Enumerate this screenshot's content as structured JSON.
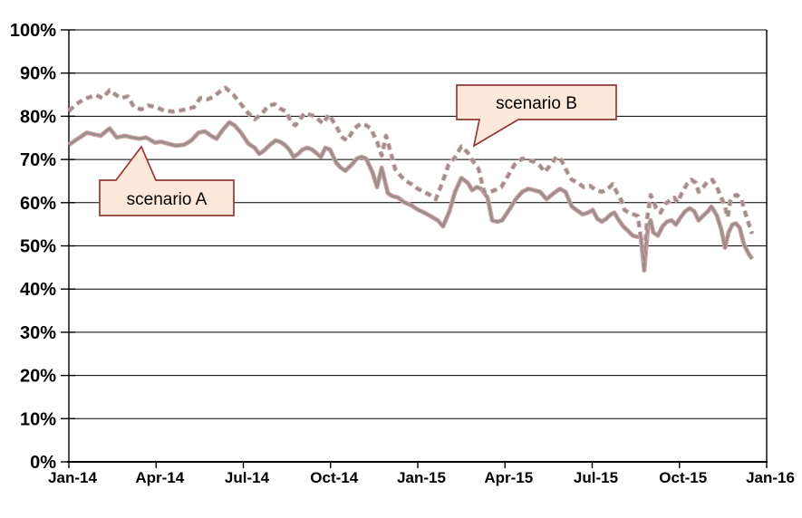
{
  "chart_data": {
    "type": "line",
    "title": "",
    "grid": "horizontal",
    "background": "#ffffff",
    "x_axis": {
      "range_months": [
        0,
        24
      ],
      "ticks": [
        {
          "label": "Jan-14",
          "month": 0
        },
        {
          "label": "Apr-14",
          "month": 3
        },
        {
          "label": "Jul-14",
          "month": 6
        },
        {
          "label": "Oct-14",
          "month": 9
        },
        {
          "label": "Jan-15",
          "month": 12
        },
        {
          "label": "Apr-15",
          "month": 15
        },
        {
          "label": "Jul-15",
          "month": 18
        },
        {
          "label": "Oct-15",
          "month": 21
        },
        {
          "label": "Jan-16",
          "month": 24
        }
      ]
    },
    "y_axis": {
      "range": [
        0,
        100
      ],
      "format": "percent",
      "ticks": [
        {
          "label": "0%",
          "value": 0
        },
        {
          "label": "10%",
          "value": 10
        },
        {
          "label": "20%",
          "value": 20
        },
        {
          "label": "30%",
          "value": 30
        },
        {
          "label": "40%",
          "value": 40
        },
        {
          "label": "50%",
          "value": 50
        },
        {
          "label": "60%",
          "value": 60
        },
        {
          "label": "70%",
          "value": 70
        },
        {
          "label": "80%",
          "value": 80
        },
        {
          "label": "90%",
          "value": 90
        },
        {
          "label": "100%",
          "value": 100
        }
      ]
    },
    "colors": {
      "line_core": "#95908e",
      "line_edge": "#d5a2a2",
      "grid": "#000000",
      "axis": "#000000"
    },
    "series": [
      {
        "name": "scenario A",
        "style": "solid",
        "points": [
          [
            0,
            73.4
          ],
          [
            0.31,
            74.8
          ],
          [
            0.62,
            76.2
          ],
          [
            0.87,
            75.8
          ],
          [
            1.09,
            75.5
          ],
          [
            1.4,
            77.2
          ],
          [
            1.65,
            75.1
          ],
          [
            1.93,
            75.5
          ],
          [
            2.18,
            75.1
          ],
          [
            2.43,
            74.8
          ],
          [
            2.65,
            75.1
          ],
          [
            2.96,
            73.9
          ],
          [
            3.18,
            74.1
          ],
          [
            3.43,
            73.6
          ],
          [
            3.68,
            73.2
          ],
          [
            3.96,
            73.4
          ],
          [
            4.21,
            74.4
          ],
          [
            4.46,
            76.2
          ],
          [
            4.68,
            76.5
          ],
          [
            4.89,
            75.5
          ],
          [
            5.08,
            74.8
          ],
          [
            5.3,
            76.9
          ],
          [
            5.52,
            78.6
          ],
          [
            5.7,
            77.9
          ],
          [
            5.92,
            76.2
          ],
          [
            6.17,
            73.7
          ],
          [
            6.39,
            72.7
          ],
          [
            6.55,
            71.3
          ],
          [
            6.7,
            72
          ],
          [
            6.92,
            73.4
          ],
          [
            7.11,
            74.4
          ],
          [
            7.26,
            74.1
          ],
          [
            7.42,
            73.4
          ],
          [
            7.58,
            72.3
          ],
          [
            7.73,
            70.6
          ],
          [
            7.89,
            71.3
          ],
          [
            8.04,
            72.3
          ],
          [
            8.2,
            72.7
          ],
          [
            8.36,
            72.3
          ],
          [
            8.67,
            70.6
          ],
          [
            8.82,
            72.7
          ],
          [
            8.98,
            72.3
          ],
          [
            9.2,
            69.2
          ],
          [
            9.35,
            68.1
          ],
          [
            9.51,
            67.4
          ],
          [
            9.73,
            68.8
          ],
          [
            9.91,
            70.2
          ],
          [
            10.07,
            70.6
          ],
          [
            10.22,
            70.2
          ],
          [
            10.44,
            67.1
          ],
          [
            10.6,
            63.6
          ],
          [
            10.76,
            68.1
          ],
          [
            10.97,
            62.2
          ],
          [
            11.13,
            61.5
          ],
          [
            11.32,
            61.2
          ],
          [
            11.53,
            60.1
          ],
          [
            11.78,
            59.4
          ],
          [
            12,
            58.4
          ],
          [
            12.22,
            57.7
          ],
          [
            12.41,
            57
          ],
          [
            12.69,
            55.9
          ],
          [
            12.87,
            54.5
          ],
          [
            13.09,
            58
          ],
          [
            13.28,
            62.5
          ],
          [
            13.5,
            65.7
          ],
          [
            13.72,
            64.6
          ],
          [
            13.87,
            62.9
          ],
          [
            14.03,
            63.6
          ],
          [
            14.18,
            63.2
          ],
          [
            14.4,
            61.2
          ],
          [
            14.56,
            55.9
          ],
          [
            14.74,
            55.6
          ],
          [
            14.9,
            55.9
          ],
          [
            15.18,
            58.7
          ],
          [
            15.37,
            60.8
          ],
          [
            15.59,
            62.5
          ],
          [
            15.8,
            63.2
          ],
          [
            15.99,
            62.9
          ],
          [
            16.21,
            62.5
          ],
          [
            16.43,
            60.8
          ],
          [
            16.68,
            62.2
          ],
          [
            16.89,
            63.2
          ],
          [
            17.08,
            62.5
          ],
          [
            17.3,
            59.1
          ],
          [
            17.52,
            58
          ],
          [
            17.67,
            57.3
          ],
          [
            17.86,
            57.7
          ],
          [
            18.02,
            58.3
          ],
          [
            18.17,
            56.3
          ],
          [
            18.33,
            55.6
          ],
          [
            18.49,
            56.3
          ],
          [
            18.64,
            57.3
          ],
          [
            18.76,
            57.7
          ],
          [
            18.92,
            55.9
          ],
          [
            19.07,
            54.5
          ],
          [
            19.23,
            53.5
          ],
          [
            19.39,
            52.4
          ],
          [
            19.54,
            52.1
          ],
          [
            19.67,
            52.1
          ],
          [
            19.79,
            44.3
          ],
          [
            19.92,
            54.5
          ],
          [
            20.01,
            55.9
          ],
          [
            20.1,
            53.1
          ],
          [
            20.26,
            52.4
          ],
          [
            20.42,
            54.5
          ],
          [
            20.57,
            55.6
          ],
          [
            20.73,
            55.9
          ],
          [
            20.88,
            54.9
          ],
          [
            21.04,
            56.6
          ],
          [
            21.2,
            58
          ],
          [
            21.35,
            58.7
          ],
          [
            21.51,
            58
          ],
          [
            21.66,
            55.9
          ],
          [
            21.82,
            57
          ],
          [
            21.98,
            58
          ],
          [
            22.1,
            59.1
          ],
          [
            22.29,
            57
          ],
          [
            22.44,
            53.8
          ],
          [
            22.57,
            49.6
          ],
          [
            22.69,
            53.1
          ],
          [
            22.82,
            54.9
          ],
          [
            22.94,
            55.2
          ],
          [
            23.07,
            54.2
          ],
          [
            23.22,
            50.3
          ],
          [
            23.38,
            48.2
          ],
          [
            23.5,
            47
          ]
        ]
      },
      {
        "name": "scenario B",
        "style": "dashed",
        "points": [
          [
            0,
            81.2
          ],
          [
            0.25,
            82.8
          ],
          [
            0.56,
            84.1
          ],
          [
            0.94,
            84.9
          ],
          [
            1.15,
            84.2
          ],
          [
            1.4,
            86
          ],
          [
            1.78,
            84.2
          ],
          [
            2.03,
            84.6
          ],
          [
            2.24,
            82.1
          ],
          [
            2.49,
            81.6
          ],
          [
            2.74,
            82.5
          ],
          [
            3.02,
            82.1
          ],
          [
            3.27,
            81.3
          ],
          [
            3.58,
            81.1
          ],
          [
            3.9,
            81.4
          ],
          [
            4.11,
            81.8
          ],
          [
            4.3,
            82.1
          ],
          [
            4.52,
            84.2
          ],
          [
            4.77,
            83.9
          ],
          [
            4.99,
            84.6
          ],
          [
            5.17,
            85.6
          ],
          [
            5.39,
            86.6
          ],
          [
            5.67,
            84.9
          ],
          [
            5.92,
            82.8
          ],
          [
            6.17,
            80.7
          ],
          [
            6.39,
            79.3
          ],
          [
            6.61,
            80.4
          ],
          [
            6.86,
            82.4
          ],
          [
            7.08,
            82.8
          ],
          [
            7.26,
            81.8
          ],
          [
            7.48,
            81.1
          ],
          [
            7.64,
            78.6
          ],
          [
            7.79,
            77.9
          ],
          [
            7.95,
            79.3
          ],
          [
            8.1,
            80.7
          ],
          [
            8.26,
            80.4
          ],
          [
            8.48,
            80
          ],
          [
            8.73,
            78.3
          ],
          [
            8.95,
            80.4
          ],
          [
            9.2,
            77.6
          ],
          [
            9.41,
            75.1
          ],
          [
            9.57,
            74.4
          ],
          [
            9.82,
            77.2
          ],
          [
            10.04,
            78.3
          ],
          [
            10.22,
            77.9
          ],
          [
            10.38,
            77.2
          ],
          [
            10.6,
            74.1
          ],
          [
            10.76,
            70.9
          ],
          [
            10.91,
            75.5
          ],
          [
            11.07,
            71.6
          ],
          [
            11.22,
            67.8
          ],
          [
            11.44,
            66
          ],
          [
            11.59,
            65
          ],
          [
            11.78,
            64.3
          ],
          [
            12,
            63.2
          ],
          [
            12.22,
            62.5
          ],
          [
            12.41,
            61.8
          ],
          [
            12.62,
            60.8
          ],
          [
            12.84,
            64.5
          ],
          [
            13.06,
            68.8
          ],
          [
            13.28,
            70.5
          ],
          [
            13.5,
            73
          ],
          [
            13.72,
            71.6
          ],
          [
            13.87,
            69.9
          ],
          [
            14.09,
            67.8
          ],
          [
            14.28,
            62.5
          ],
          [
            14.49,
            62.5
          ],
          [
            14.65,
            62.9
          ],
          [
            14.87,
            63.6
          ],
          [
            15.12,
            66.4
          ],
          [
            15.33,
            68.8
          ],
          [
            15.59,
            70.2
          ],
          [
            15.8,
            69.9
          ],
          [
            15.99,
            69.5
          ],
          [
            16.21,
            68.5
          ],
          [
            16.36,
            67.1
          ],
          [
            16.58,
            68.8
          ],
          [
            16.77,
            70.6
          ],
          [
            16.93,
            69.9
          ],
          [
            17.14,
            67.1
          ],
          [
            17.3,
            65.3
          ],
          [
            17.52,
            64.6
          ],
          [
            17.7,
            63.6
          ],
          [
            17.92,
            63.9
          ],
          [
            18.14,
            62.9
          ],
          [
            18.33,
            62.5
          ],
          [
            18.55,
            63.2
          ],
          [
            18.7,
            64.3
          ],
          [
            18.86,
            62.2
          ],
          [
            19.01,
            60.4
          ],
          [
            19.11,
            58.3
          ],
          [
            19.26,
            57.7
          ],
          [
            19.42,
            57.3
          ],
          [
            19.57,
            56.9
          ],
          [
            19.79,
            46
          ],
          [
            19.89,
            56.3
          ],
          [
            20.01,
            61.8
          ],
          [
            20.1,
            60.4
          ],
          [
            20.2,
            58.7
          ],
          [
            20.35,
            57.7
          ],
          [
            20.51,
            59.7
          ],
          [
            20.66,
            60.4
          ],
          [
            20.82,
            61.2
          ],
          [
            20.94,
            60.1
          ],
          [
            21.1,
            62.5
          ],
          [
            21.26,
            64.3
          ],
          [
            21.41,
            65.3
          ],
          [
            21.57,
            64.6
          ],
          [
            21.66,
            62.5
          ],
          [
            21.82,
            63.6
          ],
          [
            21.98,
            65
          ],
          [
            22.13,
            65.3
          ],
          [
            22.29,
            63.6
          ],
          [
            22.44,
            61.1
          ],
          [
            22.54,
            59.7
          ],
          [
            22.66,
            56.6
          ],
          [
            22.75,
            60.4
          ],
          [
            22.85,
            61.5
          ],
          [
            22.97,
            61.8
          ],
          [
            23.13,
            60.8
          ],
          [
            23.28,
            57.3
          ],
          [
            23.38,
            55.2
          ],
          [
            23.5,
            52.8
          ]
        ]
      }
    ],
    "callouts": [
      {
        "label": "scenario A",
        "fill": "#fde9d9",
        "border": "#953735"
      },
      {
        "label": "scenario B",
        "fill": "#fde9d9",
        "border": "#953735"
      }
    ]
  }
}
